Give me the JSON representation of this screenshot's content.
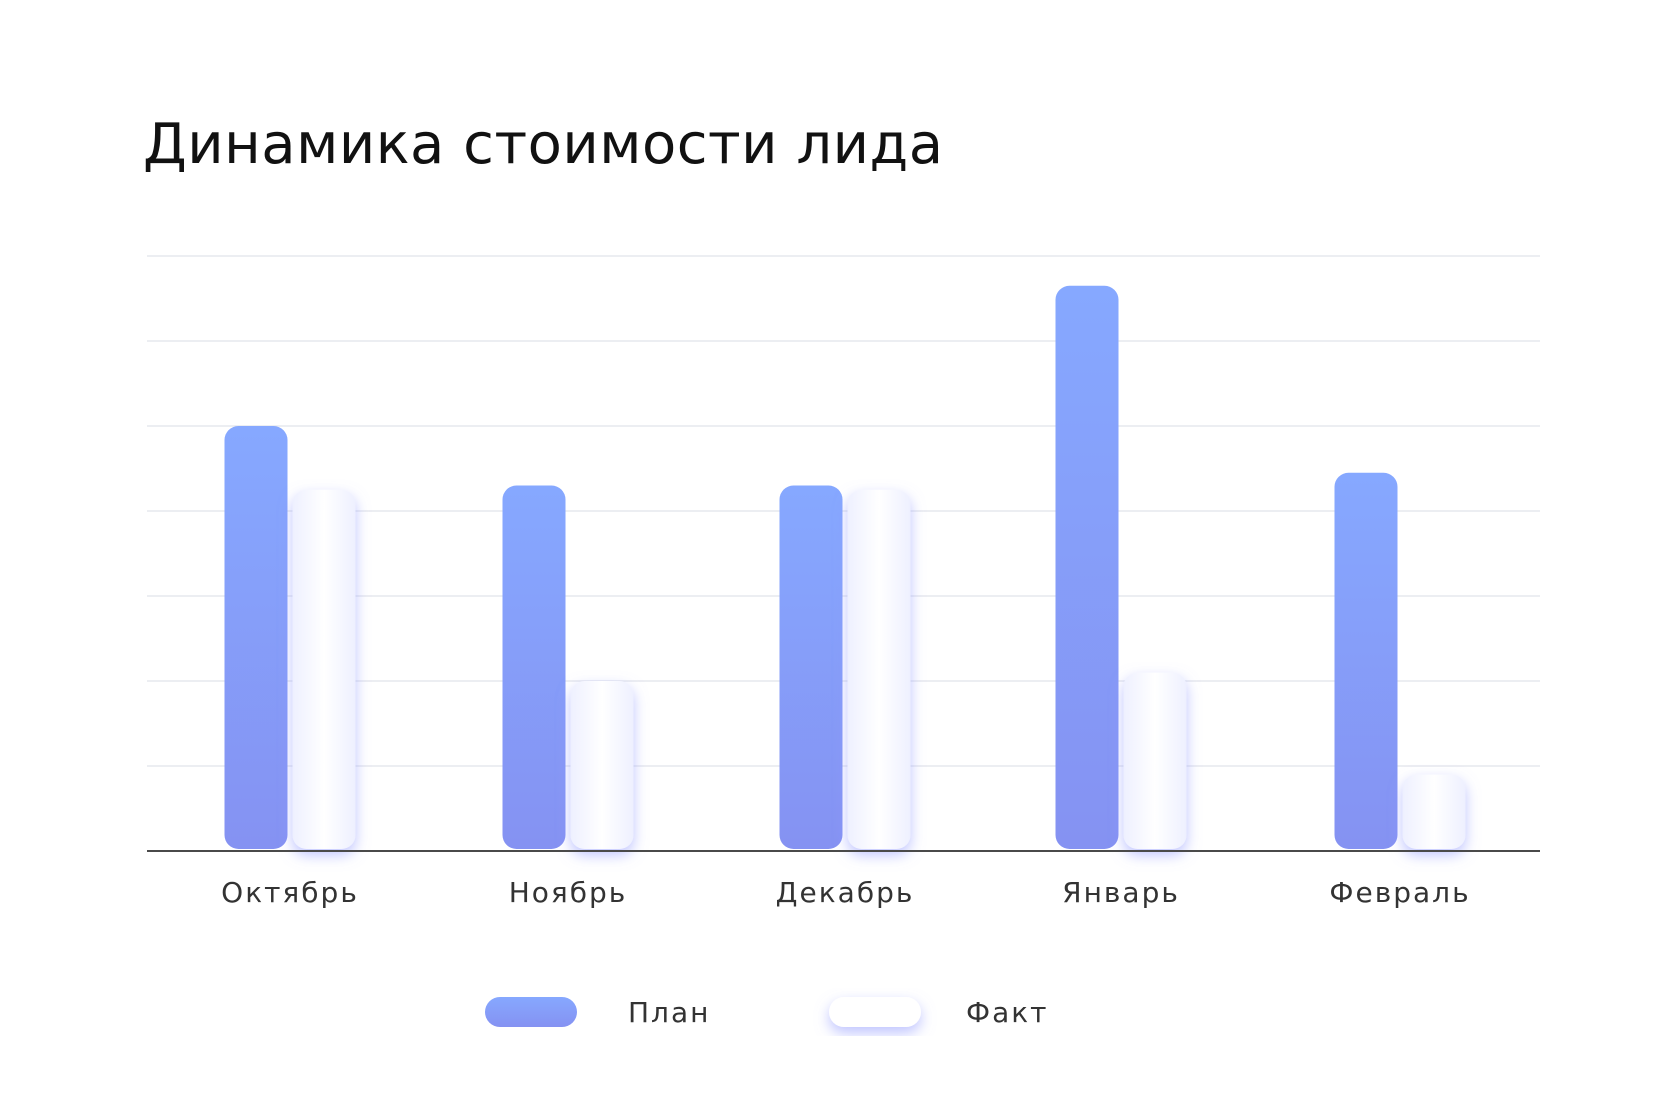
{
  "chart_data": {
    "type": "bar",
    "title": "Динамика стоимости лида",
    "categories": [
      "Октябрь",
      "Ноябрь",
      "Декабрь",
      "Январь",
      "Февраль"
    ],
    "series": [
      {
        "name": "План",
        "values": [
          5.0,
          4.3,
          4.3,
          6.65,
          4.45
        ]
      },
      {
        "name": "Факт",
        "values": [
          4.25,
          2.0,
          4.25,
          2.1,
          0.9
        ]
      }
    ],
    "xlabel": "",
    "ylabel": "",
    "ylim": [
      0,
      7
    ],
    "grid": true,
    "legend_position": "bottom",
    "colors": {
      "plan_top": "#86a8ff",
      "plan_bottom": "#8592f2",
      "fact_fill": "#ffffff",
      "fact_glow": "#8b93ff",
      "grid": "#e6e8ee",
      "axis": "#4a4a4a"
    }
  }
}
